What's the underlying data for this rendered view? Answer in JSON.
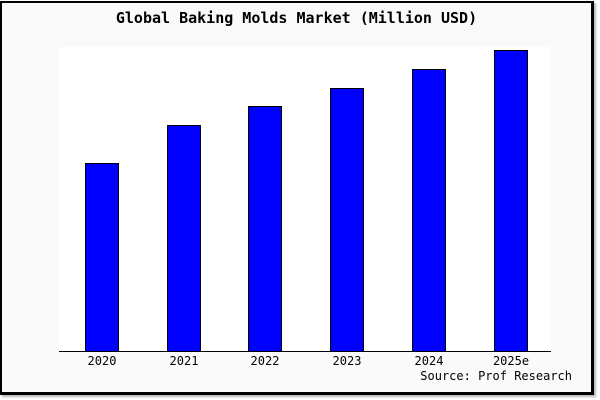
{
  "title": "Global Baking Molds Market (Million USD)",
  "source_credit": "Source: Prof Research",
  "colors": {
    "bar_fill": "#0000ff",
    "bar_border": "#000000",
    "outer_background": "#fafafa",
    "plot_background": "#ffffff",
    "frame_border": "#000000"
  },
  "chart_data": {
    "type": "bar",
    "title": "Global Baking Molds Market (Million USD)",
    "categories": [
      "2020",
      "2021",
      "2022",
      "2023",
      "2024",
      "2025e"
    ],
    "values": [
      1000,
      1200,
      1300,
      1400,
      1500,
      1600
    ],
    "xlabel": "",
    "ylabel": "",
    "ylim": [
      0,
      1616
    ],
    "y_axis_ticks_visible": false,
    "grid": false,
    "legend": false,
    "note": "No y-axis tick labels shown; values estimated from relative bar heights (unit: Million USD)."
  }
}
